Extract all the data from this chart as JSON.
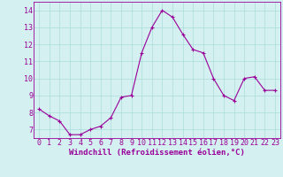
{
  "x": [
    0,
    1,
    2,
    3,
    4,
    5,
    6,
    7,
    8,
    9,
    10,
    11,
    12,
    13,
    14,
    15,
    16,
    17,
    18,
    19,
    20,
    21,
    22,
    23
  ],
  "y": [
    8.2,
    7.8,
    7.5,
    6.7,
    6.7,
    7.0,
    7.2,
    7.7,
    8.9,
    9.0,
    11.5,
    13.0,
    14.0,
    13.6,
    12.6,
    11.7,
    11.5,
    10.0,
    9.0,
    8.7,
    10.0,
    10.1,
    9.3,
    9.3
  ],
  "line_color": "#990099",
  "marker": "+",
  "marker_size": 3,
  "linewidth": 0.8,
  "xlabel": "Windchill (Refroidissement éolien,°C)",
  "xlabel_fontsize": 6.5,
  "background_color": "#d4f0f0",
  "grid_color": "#aadddd",
  "tick_fontsize": 6.0,
  "ylim": [
    6.5,
    14.5
  ],
  "yticks": [
    7,
    8,
    9,
    10,
    11,
    12,
    13,
    14
  ],
  "xticks": [
    0,
    1,
    2,
    3,
    4,
    5,
    6,
    7,
    8,
    9,
    10,
    11,
    12,
    13,
    14,
    15,
    16,
    17,
    18,
    19,
    20,
    21,
    22,
    23
  ],
  "xlim": [
    -0.5,
    23.5
  ]
}
